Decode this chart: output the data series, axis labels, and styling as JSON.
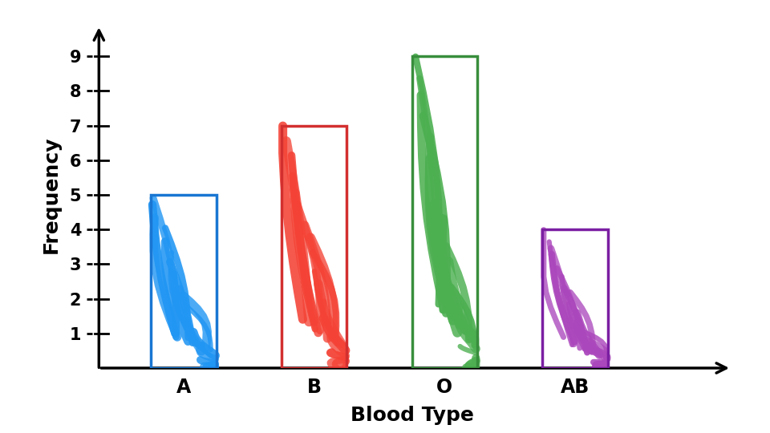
{
  "categories": [
    "A",
    "B",
    "O",
    "AB"
  ],
  "values": [
    5,
    7,
    9,
    4
  ],
  "bar_colors": [
    "#2196F3",
    "#F44336",
    "#4CAF50",
    "#AB47BC"
  ],
  "bar_edge_colors": [
    "#1976D2",
    "#D32F2F",
    "#388E3C",
    "#7B1FA2"
  ],
  "title": "",
  "xlabel": "Blood Type",
  "ylabel": "Frequency",
  "ylim_max": 9.5,
  "yticks": [
    1,
    2,
    3,
    4,
    5,
    6,
    7,
    8,
    9
  ],
  "background_color": "#FFFFFF",
  "bar_width": 0.5,
  "bar_positions": [
    1,
    2,
    3,
    4
  ],
  "xlim": [
    0.3,
    5.2
  ]
}
